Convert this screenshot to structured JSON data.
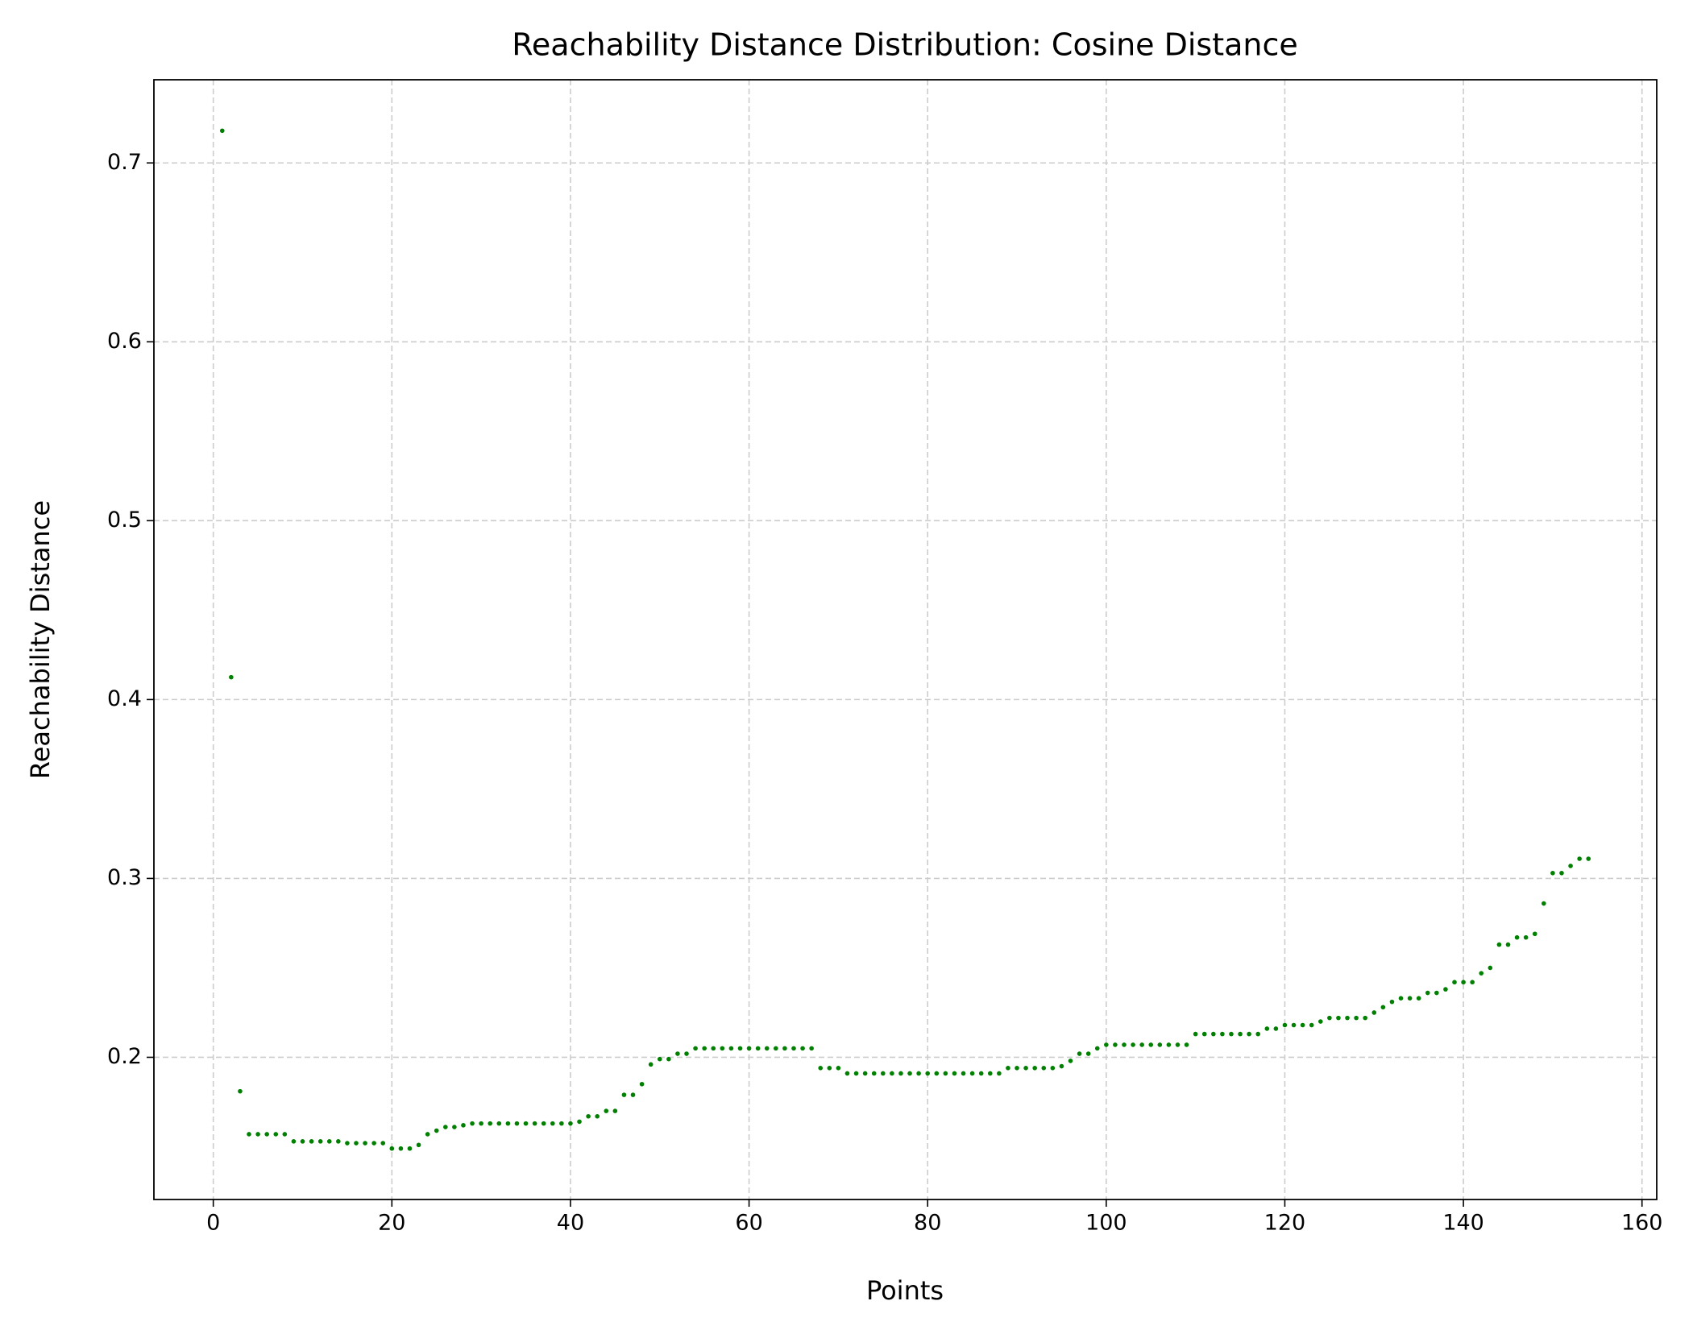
{
  "chart_data": {
    "type": "scatter",
    "title": "Reachability Distance Distribution: Cosine Distance",
    "x_label": "Points",
    "y_label": "Reachability Distance",
    "x": [
      1,
      2,
      3,
      4,
      5,
      6,
      7,
      8,
      9,
      10,
      11,
      12,
      13,
      14,
      15,
      16,
      17,
      18,
      19,
      20,
      21,
      22,
      23,
      24,
      25,
      26,
      27,
      28,
      29,
      30,
      31,
      32,
      33,
      34,
      35,
      36,
      37,
      38,
      39,
      40,
      41,
      42,
      43,
      44,
      45,
      46,
      47,
      48,
      49,
      50,
      51,
      52,
      53,
      54,
      55,
      56,
      57,
      58,
      59,
      60,
      61,
      62,
      63,
      64,
      65,
      66,
      67,
      68,
      69,
      70,
      71,
      72,
      73,
      74,
      75,
      76,
      77,
      78,
      79,
      80,
      81,
      82,
      83,
      84,
      85,
      86,
      87,
      88,
      89,
      90,
      91,
      92,
      93,
      94,
      95,
      96,
      97,
      98,
      99,
      100,
      101,
      102,
      103,
      104,
      105,
      106,
      107,
      108,
      109,
      110,
      111,
      112,
      113,
      114,
      115,
      116,
      117,
      118,
      119,
      120,
      121,
      122,
      123,
      124,
      125,
      126,
      127,
      128,
      129,
      130,
      131,
      132,
      133,
      134,
      135,
      136,
      137,
      138,
      139,
      140,
      141,
      142,
      143,
      144,
      145,
      146,
      147,
      148,
      149,
      150,
      151,
      152,
      153,
      154
    ],
    "values": [
      0.718,
      0.4125,
      0.181,
      0.157,
      0.157,
      0.157,
      0.157,
      0.157,
      0.153,
      0.153,
      0.153,
      0.153,
      0.153,
      0.153,
      0.152,
      0.152,
      0.152,
      0.152,
      0.152,
      0.149,
      0.149,
      0.149,
      0.151,
      0.157,
      0.159,
      0.161,
      0.161,
      0.162,
      0.163,
      0.163,
      0.163,
      0.163,
      0.163,
      0.163,
      0.163,
      0.163,
      0.163,
      0.163,
      0.163,
      0.163,
      0.164,
      0.167,
      0.167,
      0.17,
      0.17,
      0.179,
      0.179,
      0.185,
      0.196,
      0.199,
      0.199,
      0.202,
      0.202,
      0.205,
      0.205,
      0.205,
      0.205,
      0.205,
      0.205,
      0.205,
      0.205,
      0.205,
      0.205,
      0.205,
      0.205,
      0.205,
      0.205,
      0.194,
      0.194,
      0.194,
      0.191,
      0.191,
      0.191,
      0.191,
      0.191,
      0.191,
      0.191,
      0.191,
      0.191,
      0.191,
      0.191,
      0.191,
      0.191,
      0.191,
      0.191,
      0.191,
      0.191,
      0.191,
      0.194,
      0.194,
      0.194,
      0.194,
      0.194,
      0.194,
      0.195,
      0.198,
      0.202,
      0.202,
      0.205,
      0.207,
      0.207,
      0.207,
      0.207,
      0.207,
      0.207,
      0.207,
      0.207,
      0.207,
      0.207,
      0.213,
      0.213,
      0.213,
      0.213,
      0.213,
      0.213,
      0.213,
      0.213,
      0.216,
      0.216,
      0.218,
      0.218,
      0.218,
      0.218,
      0.22,
      0.222,
      0.222,
      0.222,
      0.222,
      0.222,
      0.225,
      0.228,
      0.231,
      0.233,
      0.233,
      0.233,
      0.236,
      0.236,
      0.238,
      0.242,
      0.242,
      0.242,
      0.247,
      0.25,
      0.263,
      0.263,
      0.267,
      0.267,
      0.269,
      0.286,
      0.303,
      0.303,
      0.307,
      0.311,
      0.311
    ],
    "color": "#008000",
    "xlim": [
      -6.65,
      161.65
    ],
    "ylim": [
      0.1205,
      0.7465
    ],
    "xticks": [
      0,
      20,
      40,
      60,
      80,
      100,
      120,
      140,
      160
    ],
    "yticks": [
      0.2,
      0.3,
      0.4,
      0.5,
      0.6,
      0.7
    ],
    "grid": true
  }
}
